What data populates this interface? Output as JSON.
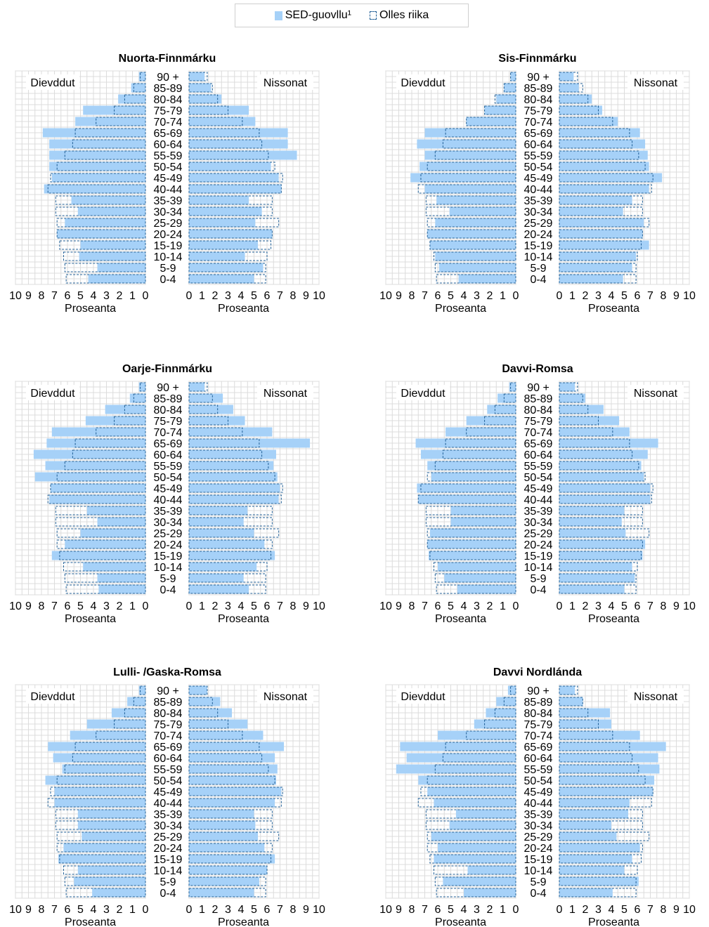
{
  "legend": {
    "series_label": "SED-guovllu¹",
    "reference_label": "Olles riika",
    "series_color": "#a6d1f8",
    "reference_color": "#1f5e95"
  },
  "chart_data": [
    {
      "type": "bar",
      "title": "Nuorta-Finnmárku",
      "left_label": "Dievddut",
      "right_label": "Nissonat",
      "xlabel": "Proseanta",
      "xlim": [
        0,
        10
      ],
      "x_ticks": [
        "10",
        "9",
        "8",
        "7",
        "6",
        "5",
        "4",
        "3",
        "2",
        "1",
        "0"
      ],
      "x_ticks_right": [
        "0",
        "1",
        "2",
        "3",
        "4",
        "5",
        "6",
        "7",
        "8",
        "9",
        "10"
      ],
      "categories": [
        "0-4",
        "5-9",
        "10-14",
        "15-19",
        "20-24",
        "25-29",
        "30-34",
        "35-39",
        "40-44",
        "45-49",
        "50-54",
        "55-59",
        "60-64",
        "65-69",
        "70-74",
        "75-79",
        "80-84",
        "85-89",
        "90 +"
      ],
      "series": [
        {
          "name": "SED-guovllu¹",
          "side": "Dievddut",
          "values": [
            4.4,
            3.7,
            5.1,
            5.0,
            6.8,
            6.2,
            5.2,
            5.7,
            7.8,
            7.2,
            7.4,
            7.4,
            7.4,
            7.9,
            5.4,
            4.8,
            2.1,
            1.1,
            0.5
          ]
        },
        {
          "name": "Olles riika",
          "side": "Dievddut",
          "values": [
            6.1,
            6.2,
            6.3,
            6.6,
            6.8,
            6.8,
            6.9,
            6.9,
            7.5,
            7.3,
            6.8,
            6.2,
            5.6,
            5.4,
            3.8,
            2.4,
            1.6,
            0.9,
            0.4
          ]
        },
        {
          "name": "SED-guovllu¹",
          "side": "Nissonat",
          "values": [
            5.0,
            5.7,
            4.3,
            5.3,
            6.4,
            5.1,
            5.6,
            4.6,
            7.1,
            6.9,
            6.3,
            8.3,
            7.6,
            7.6,
            5.1,
            4.6,
            2.5,
            1.7,
            1.2
          ]
        },
        {
          "name": "Olles riika",
          "side": "Nissonat",
          "values": [
            5.9,
            5.9,
            6.0,
            6.3,
            6.4,
            6.9,
            6.4,
            6.4,
            7.1,
            7.2,
            6.6,
            6.1,
            5.6,
            5.4,
            4.1,
            3.0,
            2.2,
            1.8,
            1.4
          ]
        }
      ]
    },
    {
      "type": "bar",
      "title": "Sis-Finnmárku",
      "left_label": "Dievddut",
      "right_label": "Nissonat",
      "xlabel": "Proseanta",
      "xlim": [
        0,
        10
      ],
      "x_ticks": [
        "10",
        "9",
        "8",
        "7",
        "6",
        "5",
        "4",
        "3",
        "2",
        "1",
        "0"
      ],
      "x_ticks_right": [
        "0",
        "1",
        "2",
        "3",
        "4",
        "5",
        "6",
        "7",
        "8",
        "9",
        "10"
      ],
      "categories": [
        "0-4",
        "5-9",
        "10-14",
        "15-19",
        "20-24",
        "25-29",
        "30-34",
        "35-39",
        "40-44",
        "45-49",
        "50-54",
        "55-59",
        "60-64",
        "65-69",
        "70-74",
        "75-79",
        "80-84",
        "85-89",
        "90 +"
      ],
      "series": [
        {
          "name": "SED-guovllu¹",
          "side": "Dievddut",
          "values": [
            4.4,
            5.9,
            6.2,
            6.6,
            6.8,
            6.2,
            5.1,
            6.1,
            7.0,
            8.1,
            7.4,
            7.0,
            7.6,
            7.0,
            3.8,
            2.4,
            1.5,
            0.9,
            0.4
          ]
        },
        {
          "name": "Olles riika",
          "side": "Dievddut",
          "values": [
            6.1,
            6.2,
            6.3,
            6.6,
            6.8,
            6.8,
            6.9,
            6.9,
            7.5,
            7.3,
            6.8,
            6.2,
            5.6,
            5.4,
            3.8,
            2.4,
            1.6,
            0.9,
            0.4
          ]
        },
        {
          "name": "SED-guovllu¹",
          "side": "Nissonat",
          "values": [
            4.9,
            5.6,
            5.9,
            6.9,
            6.4,
            6.5,
            4.9,
            5.6,
            6.9,
            7.9,
            6.9,
            6.8,
            6.6,
            6.2,
            4.5,
            3.3,
            2.5,
            1.5,
            1.1
          ]
        },
        {
          "name": "Olles riika",
          "side": "Nissonat",
          "values": [
            5.9,
            5.9,
            6.0,
            6.3,
            6.4,
            6.9,
            6.4,
            6.4,
            7.1,
            7.2,
            6.6,
            6.1,
            5.6,
            5.4,
            4.1,
            3.0,
            2.2,
            1.8,
            1.4
          ]
        }
      ]
    },
    {
      "type": "bar",
      "title": "Oarje-Finnmárku",
      "left_label": "Dievddut",
      "right_label": "Nissonat",
      "xlabel": "Proseanta",
      "xlim": [
        0,
        10
      ],
      "x_ticks": [
        "10",
        "9",
        "8",
        "7",
        "6",
        "5",
        "4",
        "3",
        "2",
        "1",
        "0"
      ],
      "x_ticks_right": [
        "0",
        "1",
        "2",
        "3",
        "4",
        "5",
        "6",
        "7",
        "8",
        "9",
        "10"
      ],
      "categories": [
        "0-4",
        "5-9",
        "10-14",
        "15-19",
        "20-24",
        "25-29",
        "30-34",
        "35-39",
        "40-44",
        "45-49",
        "50-54",
        "55-59",
        "60-64",
        "65-69",
        "70-74",
        "75-79",
        "80-84",
        "85-89",
        "90 +"
      ],
      "series": [
        {
          "name": "SED-guovllu¹",
          "side": "Dievddut",
          "values": [
            3.6,
            3.7,
            4.8,
            7.2,
            6.2,
            5.0,
            3.7,
            4.5,
            7.4,
            7.3,
            8.5,
            7.7,
            8.6,
            7.6,
            7.2,
            4.6,
            3.1,
            1.2,
            0.5
          ]
        },
        {
          "name": "Olles riika",
          "side": "Dievddut",
          "values": [
            6.1,
            6.2,
            6.3,
            6.6,
            6.8,
            6.8,
            6.9,
            6.9,
            7.5,
            7.3,
            6.8,
            6.2,
            5.6,
            5.4,
            3.8,
            2.4,
            1.6,
            0.9,
            0.4
          ]
        },
        {
          "name": "SED-guovllu¹",
          "side": "Nissonat",
          "values": [
            4.6,
            4.2,
            5.2,
            6.6,
            5.8,
            5.0,
            4.2,
            4.5,
            6.9,
            7.0,
            6.8,
            6.5,
            6.7,
            9.3,
            6.4,
            4.3,
            3.4,
            2.6,
            1.2
          ]
        },
        {
          "name": "Olles riika",
          "side": "Nissonat",
          "values": [
            5.9,
            5.9,
            6.0,
            6.3,
            6.4,
            6.9,
            6.4,
            6.4,
            7.1,
            7.2,
            6.6,
            6.1,
            5.6,
            5.4,
            4.1,
            3.0,
            2.2,
            1.8,
            1.4
          ]
        }
      ]
    },
    {
      "type": "bar",
      "title": "Davvi-Romsa",
      "left_label": "Dievddut",
      "right_label": "Nissonat",
      "xlabel": "Proseanta",
      "xlim": [
        0,
        10
      ],
      "x_ticks": [
        "10",
        "9",
        "8",
        "7",
        "6",
        "5",
        "4",
        "3",
        "2",
        "1",
        "0"
      ],
      "x_ticks_right": [
        "0",
        "1",
        "2",
        "3",
        "4",
        "5",
        "6",
        "7",
        "8",
        "9",
        "10"
      ],
      "categories": [
        "0-4",
        "5-9",
        "10-14",
        "15-19",
        "20-24",
        "25-29",
        "30-34",
        "35-39",
        "40-44",
        "45-49",
        "50-54",
        "55-59",
        "60-64",
        "65-69",
        "70-74",
        "75-79",
        "80-84",
        "85-89",
        "90 +"
      ],
      "series": [
        {
          "name": "SED-guovllu¹",
          "side": "Dievddut",
          "values": [
            4.5,
            5.5,
            6.0,
            6.7,
            6.8,
            6.6,
            5.0,
            5.0,
            7.5,
            7.6,
            6.5,
            6.8,
            7.3,
            7.7,
            5.4,
            3.8,
            2.2,
            1.4,
            0.5
          ]
        },
        {
          "name": "Olles riika",
          "side": "Dievddut",
          "values": [
            6.1,
            6.2,
            6.3,
            6.6,
            6.8,
            6.8,
            6.9,
            6.9,
            7.5,
            7.3,
            6.8,
            6.2,
            5.6,
            5.4,
            3.8,
            2.4,
            1.6,
            0.9,
            0.4
          ]
        },
        {
          "name": "SED-guovllu¹",
          "side": "Nissonat",
          "values": [
            5.0,
            5.8,
            5.6,
            6.4,
            6.6,
            5.1,
            4.8,
            5.0,
            7.0,
            7.0,
            6.5,
            6.3,
            6.8,
            7.6,
            5.4,
            4.6,
            3.4,
            2.0,
            1.2
          ]
        },
        {
          "name": "Olles riika",
          "side": "Nissonat",
          "values": [
            5.9,
            5.9,
            6.0,
            6.3,
            6.4,
            6.9,
            6.4,
            6.4,
            7.1,
            7.2,
            6.6,
            6.1,
            5.6,
            5.4,
            4.1,
            3.0,
            2.2,
            1.8,
            1.4
          ]
        }
      ]
    },
    {
      "type": "bar",
      "title": "Lulli- /Gaska-Romsa",
      "left_label": "Dievddut",
      "right_label": "Nissonat",
      "xlabel": "Proseanta",
      "xlim": [
        0,
        10
      ],
      "x_ticks": [
        "10",
        "9",
        "8",
        "7",
        "6",
        "5",
        "4",
        "3",
        "2",
        "1",
        "0"
      ],
      "x_ticks_right": [
        "0",
        "1",
        "2",
        "3",
        "4",
        "5",
        "6",
        "7",
        "8",
        "9",
        "10"
      ],
      "categories": [
        "0-4",
        "5-9",
        "10-14",
        "15-19",
        "20-24",
        "25-29",
        "30-34",
        "35-39",
        "40-44",
        "45-49",
        "50-54",
        "55-59",
        "60-64",
        "65-69",
        "70-74",
        "75-79",
        "80-84",
        "85-89",
        "90 +"
      ],
      "series": [
        {
          "name": "SED-guovllu¹",
          "side": "Dievddut",
          "values": [
            4.1,
            5.5,
            5.2,
            6.7,
            6.3,
            4.9,
            5.2,
            5.2,
            7.0,
            7.0,
            7.7,
            6.4,
            7.1,
            7.5,
            5.8,
            4.5,
            2.6,
            1.4,
            0.5
          ]
        },
        {
          "name": "Olles riika",
          "side": "Dievddut",
          "values": [
            6.1,
            6.2,
            6.3,
            6.6,
            6.8,
            6.8,
            6.9,
            6.9,
            7.5,
            7.3,
            6.8,
            6.2,
            5.6,
            5.4,
            3.8,
            2.4,
            1.6,
            0.9,
            0.4
          ]
        },
        {
          "name": "SED-guovllu¹",
          "side": "Nissonat",
          "values": [
            5.0,
            5.4,
            6.0,
            6.6,
            5.8,
            5.3,
            5.1,
            5.0,
            6.6,
            7.1,
            6.7,
            6.8,
            6.6,
            7.3,
            5.7,
            4.5,
            3.3,
            2.4,
            1.4
          ]
        },
        {
          "name": "Olles riika",
          "side": "Nissonat",
          "values": [
            5.9,
            5.9,
            6.0,
            6.3,
            6.4,
            6.9,
            6.4,
            6.4,
            7.1,
            7.2,
            6.6,
            6.1,
            5.6,
            5.4,
            4.1,
            3.0,
            2.2,
            1.8,
            1.4
          ]
        }
      ]
    },
    {
      "type": "bar",
      "title": "Davvi Nordlánda",
      "left_label": "Dievddut",
      "right_label": "Nissonat",
      "xlabel": "Proseanta",
      "xlim": [
        0,
        10
      ],
      "x_ticks": [
        "10",
        "9",
        "8",
        "7",
        "6",
        "5",
        "4",
        "3",
        "2",
        "1",
        "0"
      ],
      "x_ticks_right": [
        "0",
        "1",
        "2",
        "3",
        "4",
        "5",
        "6",
        "7",
        "8",
        "9",
        "10"
      ],
      "categories": [
        "0-4",
        "5-9",
        "10-14",
        "15-19",
        "20-24",
        "25-29",
        "30-34",
        "35-39",
        "40-44",
        "45-49",
        "50-54",
        "55-59",
        "60-64",
        "65-69",
        "70-74",
        "75-79",
        "80-84",
        "85-89",
        "90 +"
      ],
      "series": [
        {
          "name": "SED-guovllu¹",
          "side": "Dievddut",
          "values": [
            4.0,
            5.6,
            3.7,
            6.3,
            6.0,
            6.5,
            5.1,
            4.6,
            6.3,
            6.8,
            7.5,
            9.2,
            8.4,
            8.9,
            6.0,
            3.2,
            2.3,
            1.5,
            0.6
          ]
        },
        {
          "name": "Olles riika",
          "side": "Dievddut",
          "values": [
            6.1,
            6.2,
            6.3,
            6.6,
            6.8,
            6.8,
            6.9,
            6.9,
            7.5,
            7.3,
            6.8,
            6.2,
            5.6,
            5.4,
            3.8,
            2.4,
            1.6,
            0.9,
            0.4
          ]
        },
        {
          "name": "SED-guovllu¹",
          "side": "Nissonat",
          "values": [
            4.1,
            6.1,
            5.0,
            5.6,
            6.2,
            4.4,
            4.0,
            5.3,
            5.4,
            7.2,
            7.3,
            7.7,
            7.6,
            8.2,
            6.2,
            4.0,
            3.9,
            1.8,
            1.2
          ]
        },
        {
          "name": "Olles riika",
          "side": "Nissonat",
          "values": [
            5.9,
            5.9,
            6.0,
            6.3,
            6.4,
            6.9,
            6.4,
            6.4,
            7.1,
            7.2,
            6.6,
            6.1,
            5.6,
            5.4,
            4.1,
            3.0,
            2.2,
            1.8,
            1.4
          ]
        }
      ]
    }
  ]
}
